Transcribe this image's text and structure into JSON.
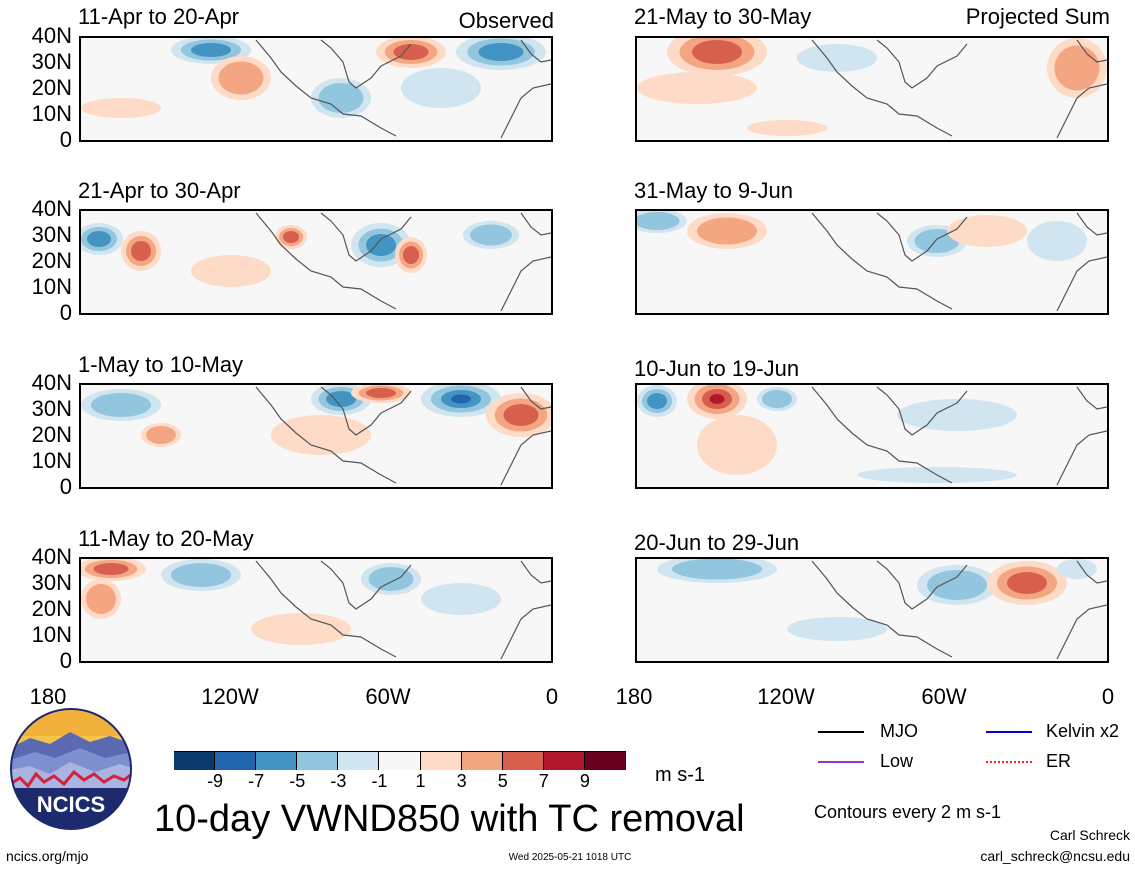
{
  "panels": [
    {
      "title": "11-Apr to 20-Apr",
      "label": "Observed",
      "column": "left",
      "row": 0
    },
    {
      "title": "21-Apr to 30-Apr",
      "label": "",
      "column": "left",
      "row": 1
    },
    {
      "title": "1-May to 10-May",
      "label": "",
      "column": "left",
      "row": 2
    },
    {
      "title": "11-May to 20-May",
      "label": "",
      "column": "left",
      "row": 3
    },
    {
      "title": "21-May to 30-May",
      "label": "Projected Sum",
      "column": "right",
      "row": 0
    },
    {
      "title": "31-May to 9-Jun",
      "label": "",
      "column": "right",
      "row": 1
    },
    {
      "title": "10-Jun to 19-Jun",
      "label": "",
      "column": "right",
      "row": 2
    },
    {
      "title": "20-Jun to 29-Jun",
      "label": "",
      "column": "right",
      "row": 3
    }
  ],
  "lat_ticks": [
    "40N",
    "30N",
    "20N",
    "10N",
    "0"
  ],
  "lon_ticks": [
    "180",
    "120W",
    "60W",
    "0"
  ],
  "colorbar": {
    "colors": [
      "#0a3a6b",
      "#2166ac",
      "#4393c3",
      "#92c5de",
      "#d1e5f0",
      "#f7f7f7",
      "#fddbc7",
      "#f4a582",
      "#d6604d",
      "#b2182b",
      "#67001f"
    ],
    "labels": [
      "-9",
      "-7",
      "-5",
      "-3",
      "-1",
      "1",
      "3",
      "5",
      "7",
      "9"
    ],
    "units": "m s-1"
  },
  "main_title": "10-day VWND850 with TC removal",
  "legend": [
    {
      "label": "MJO",
      "color": "#000000"
    },
    {
      "label": "Kelvin x2",
      "color": "#0000cc"
    },
    {
      "label": "Low",
      "color": "#9933cc"
    },
    {
      "label": "ER",
      "color": "#ff2222"
    }
  ],
  "contour_note": "Contours every 2 m s-1",
  "author": "Carl Schreck",
  "email": "carl_schreck@ncsu.edu",
  "website": "ncics.org/mjo",
  "timestamp": "Wed 2025-05-21 1018 UTC",
  "logo_text": "NCICS"
}
